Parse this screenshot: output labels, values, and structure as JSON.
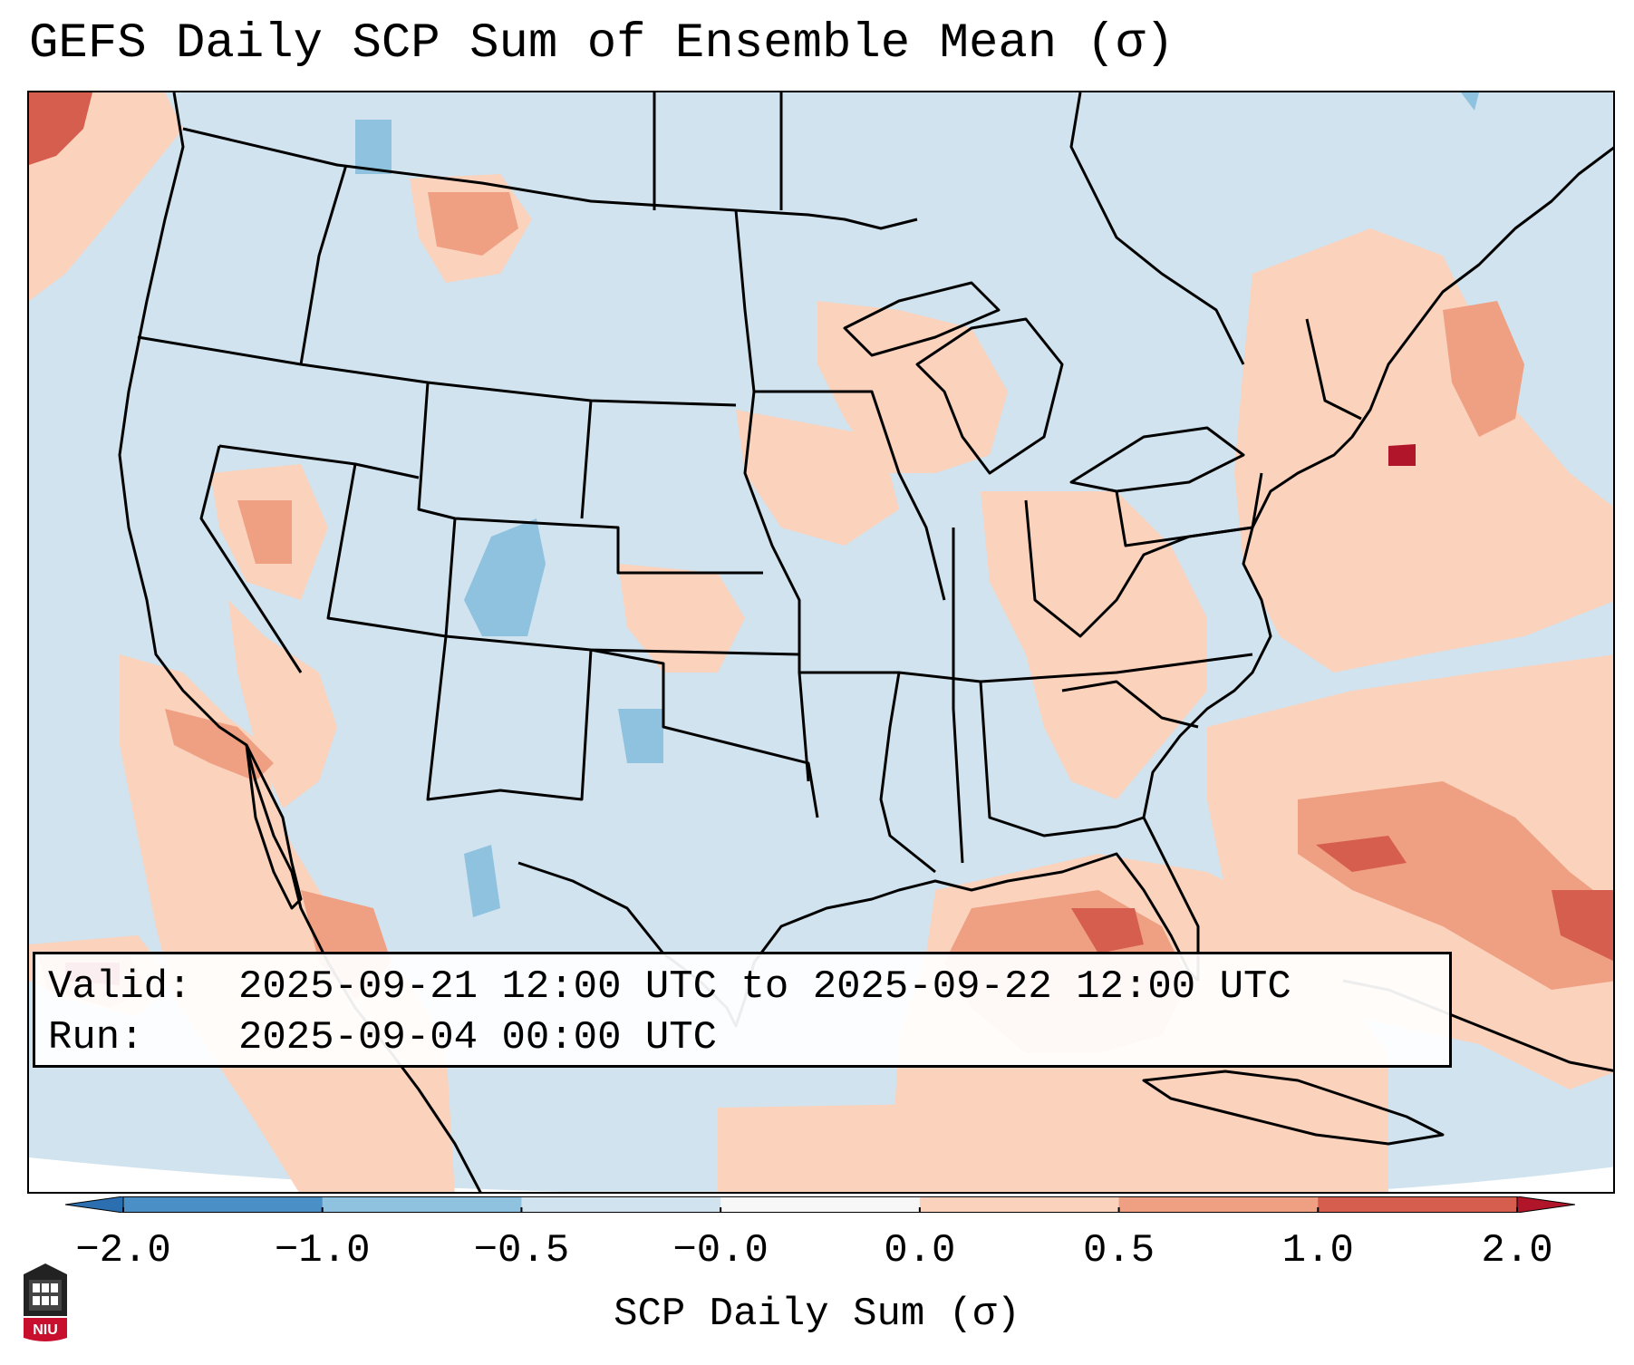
{
  "title": "GEFS Daily SCP Sum of Ensemble Mean (σ)",
  "info_box": {
    "valid_label": "Valid:",
    "valid_value": "2025-09-21 12:00 UTC to 2025-09-22 12:00 UTC",
    "run_label": "Run:",
    "run_value": "2025-09-04 00:00 UTC"
  },
  "colorbar": {
    "label": "SCP Daily Sum (σ)",
    "ticks": [
      "−2.0",
      "−1.0",
      "−0.5",
      "−0.0",
      "0.0",
      "0.5",
      "1.0",
      "2.0"
    ],
    "bins": [
      {
        "color": "#2b6fb0",
        "range": "< -2.0"
      },
      {
        "color": "#4a8fc6",
        "range": "-2.0 to -1.0"
      },
      {
        "color": "#8fc2df",
        "range": "-1.0 to -0.5"
      },
      {
        "color": "#d0e3ef",
        "range": "-0.5 to -0.0"
      },
      {
        "color": "#f7f7f7",
        "range": "-0.0 to 0.0"
      },
      {
        "color": "#fbd2bc",
        "range": "0.0 to 0.5"
      },
      {
        "color": "#efa083",
        "range": "0.5 to 1.0"
      },
      {
        "color": "#d65e4e",
        "range": "1.0 to 2.0"
      },
      {
        "color": "#b0152a",
        "range": "> 2.0"
      }
    ]
  },
  "logo": {
    "text": "NIU"
  },
  "colors": {
    "background_negative": "#d0e3ef",
    "light_positive": "#fbd2bc",
    "mid_positive": "#efa083",
    "strong_positive": "#d65e4e",
    "extreme_positive": "#b0152a",
    "mid_negative": "#8fc2df"
  }
}
